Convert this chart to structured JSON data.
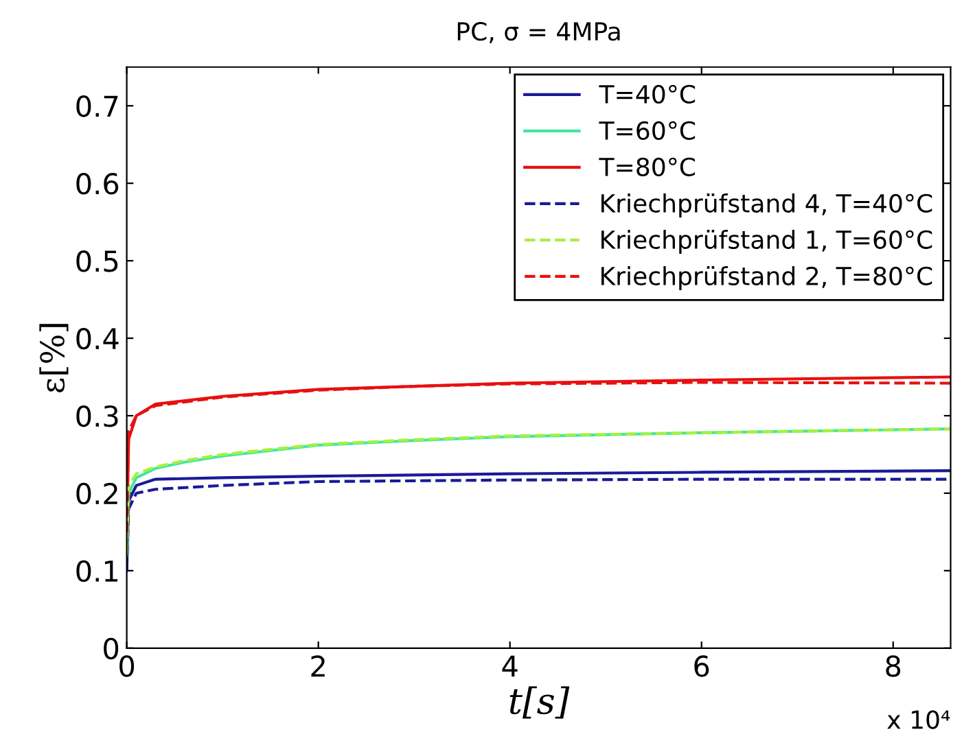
{
  "chart_data": {
    "type": "line",
    "title": "PC, σ = 4MPa",
    "xlabel": "t[s]",
    "ylabel": "ε[%]",
    "xlim": [
      0,
      8.6
    ],
    "xticks": [
      0,
      2,
      4,
      6,
      8
    ],
    "ylim": [
      0,
      0.75
    ],
    "yticks": [
      0,
      0.1,
      0.2,
      0.3,
      0.4,
      0.5,
      0.6,
      0.7
    ],
    "annotations": [
      "x 10⁴"
    ],
    "legend": "top right",
    "grid": false,
    "series": [
      {
        "name": "T=40°C",
        "color": "#1a1a9a",
        "line_style": "solid",
        "x": [
          0,
          0.02,
          0.1,
          0.3,
          1,
          2,
          4,
          6,
          8.6
        ],
        "values": [
          0.1,
          0.19,
          0.21,
          0.218,
          0.22,
          0.222,
          0.225,
          0.227,
          0.229
        ]
      },
      {
        "name": "T=60°C",
        "color": "#40e8a0",
        "line_style": "solid",
        "x": [
          0,
          0.02,
          0.1,
          0.3,
          0.6,
          1,
          2,
          3,
          4,
          6,
          8.6
        ],
        "values": [
          0.12,
          0.2,
          0.22,
          0.232,
          0.24,
          0.248,
          0.262,
          0.268,
          0.273,
          0.278,
          0.283
        ]
      },
      {
        "name": "T=80°C",
        "color": "#e81010",
        "line_style": "solid",
        "x": [
          0,
          0.02,
          0.1,
          0.3,
          1,
          2,
          3,
          4,
          6,
          8.6
        ],
        "values": [
          0.15,
          0.27,
          0.3,
          0.315,
          0.325,
          0.334,
          0.338,
          0.342,
          0.346,
          0.35
        ]
      },
      {
        "name": "Kriechprüfstand 4, T=40°C",
        "color": "#1a1a9a",
        "line_style": "dashed",
        "x": [
          0,
          0.02,
          0.1,
          0.3,
          1,
          2,
          4,
          6,
          8.6
        ],
        "values": [
          0.1,
          0.18,
          0.2,
          0.205,
          0.21,
          0.215,
          0.217,
          0.218,
          0.218
        ]
      },
      {
        "name": "Kriechprüfstand 1, T=60°C",
        "color": "#a8f040",
        "line_style": "dashed",
        "x": [
          0,
          0.02,
          0.1,
          0.3,
          0.6,
          1,
          2,
          3,
          4,
          6,
          8.6
        ],
        "values": [
          0.12,
          0.21,
          0.225,
          0.234,
          0.242,
          0.25,
          0.263,
          0.269,
          0.274,
          0.278,
          0.283
        ]
      },
      {
        "name": "Kriechprüfstand 2, T=80°C",
        "color": "#e81010",
        "line_style": "dashed",
        "x": [
          0,
          0.02,
          0.1,
          0.3,
          1,
          2,
          3,
          4,
          6,
          8.6
        ],
        "values": [
          0.15,
          0.28,
          0.3,
          0.313,
          0.324,
          0.333,
          0.338,
          0.341,
          0.343,
          0.342
        ]
      }
    ]
  }
}
